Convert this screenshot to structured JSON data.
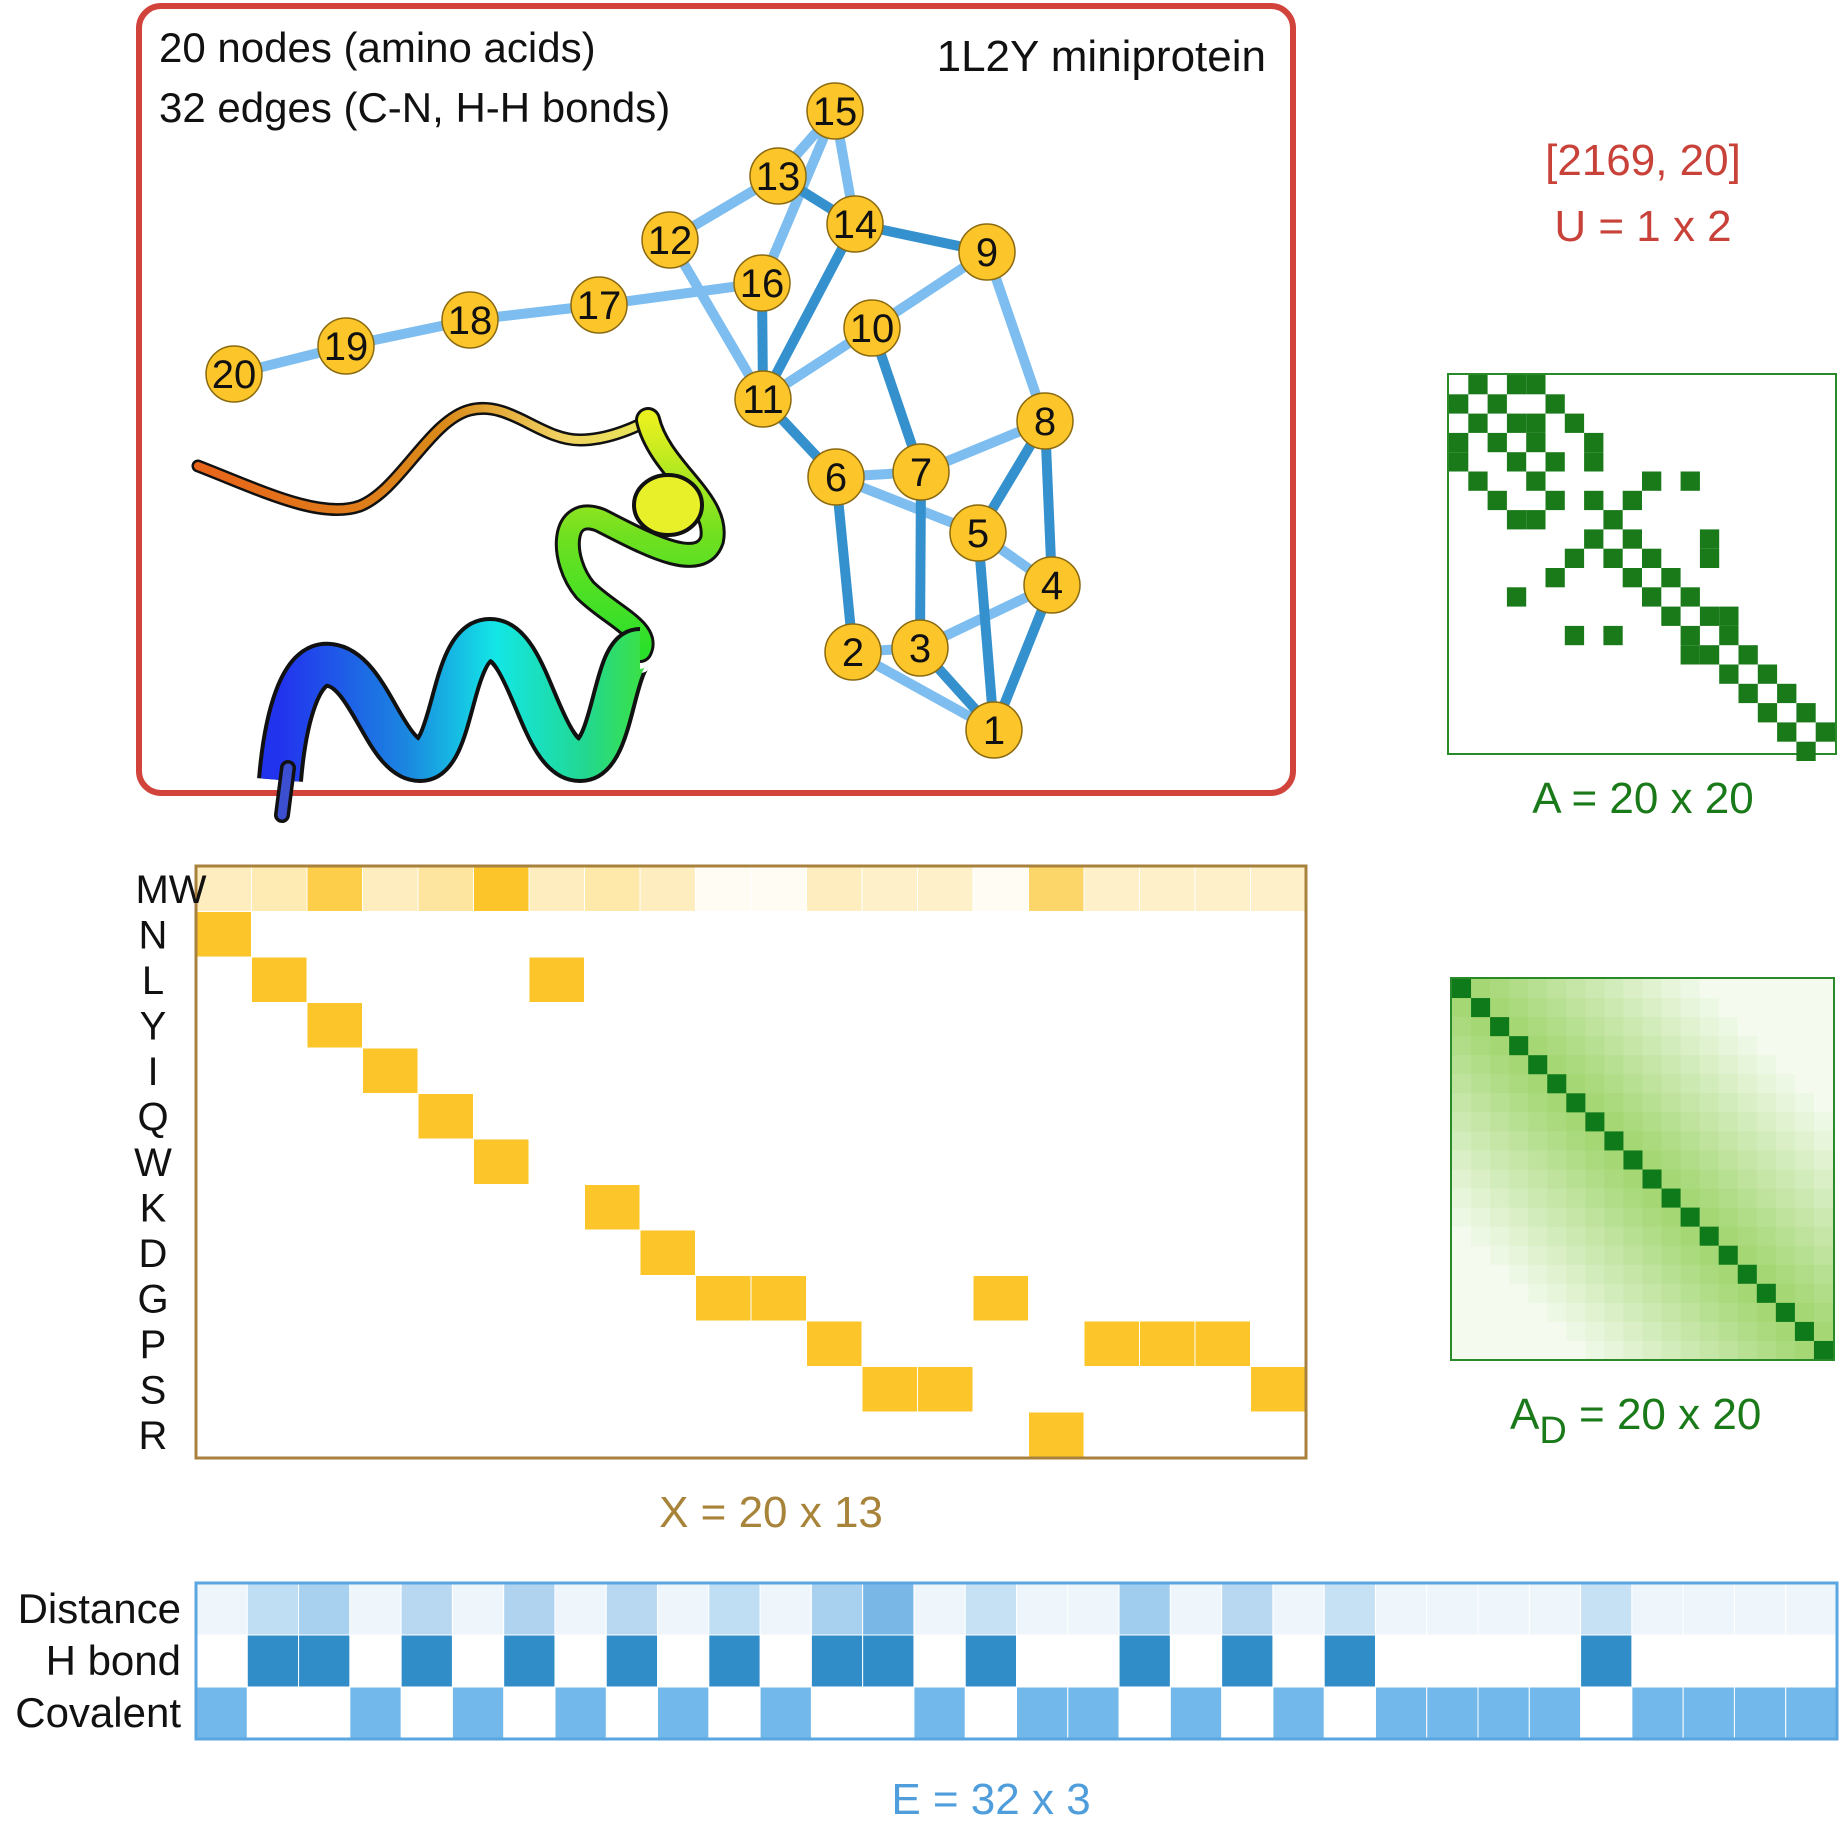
{
  "graph_panel": {
    "nodes_text": "20 nodes (amino acids)",
    "edges_text": "32 edges (C-N, H-H bonds)",
    "title": "1L2Y miniprotein",
    "node_labels": [
      "1",
      "2",
      "3",
      "4",
      "5",
      "6",
      "7",
      "8",
      "9",
      "10",
      "11",
      "12",
      "13",
      "14",
      "15",
      "16",
      "17",
      "18",
      "19",
      "20"
    ],
    "edges_light": [
      [
        1,
        2
      ],
      [
        2,
        3
      ],
      [
        3,
        4
      ],
      [
        4,
        5
      ],
      [
        5,
        6
      ],
      [
        6,
        7
      ],
      [
        7,
        8
      ],
      [
        8,
        9
      ],
      [
        9,
        10
      ],
      [
        10,
        11
      ],
      [
        11,
        12
      ],
      [
        12,
        13
      ],
      [
        13,
        15
      ],
      [
        14,
        15
      ],
      [
        15,
        16
      ],
      [
        16,
        17
      ],
      [
        17,
        18
      ],
      [
        18,
        19
      ],
      [
        19,
        20
      ]
    ],
    "edges_dark": [
      [
        1,
        4
      ],
      [
        1,
        5
      ],
      [
        1,
        3
      ],
      [
        2,
        6
      ],
      [
        3,
        7
      ],
      [
        4,
        8
      ],
      [
        5,
        8
      ],
      [
        6,
        11
      ],
      [
        7,
        10
      ],
      [
        9,
        14
      ],
      [
        11,
        14
      ],
      [
        11,
        16
      ],
      [
        13,
        14
      ]
    ]
  },
  "u_block": {
    "shape": "[2169, 20]",
    "label": "U = 1 x 2",
    "color": "#c8423a"
  },
  "adjacency": {
    "label": "A = 20 x 20",
    "color": "#1a7a1a",
    "cells": [
      [
        0,
        1
      ],
      [
        0,
        3
      ],
      [
        0,
        4
      ],
      [
        1,
        0
      ],
      [
        1,
        2
      ],
      [
        1,
        5
      ],
      [
        2,
        1
      ],
      [
        2,
        3
      ],
      [
        2,
        6
      ],
      [
        3,
        0
      ],
      [
        3,
        2
      ],
      [
        3,
        4
      ],
      [
        3,
        7
      ],
      [
        4,
        0
      ],
      [
        4,
        3
      ],
      [
        4,
        5
      ],
      [
        4,
        7
      ],
      [
        5,
        1
      ],
      [
        5,
        4
      ],
      [
        5,
        10
      ],
      [
        5,
        12
      ],
      [
        6,
        2
      ],
      [
        6,
        7
      ],
      [
        6,
        9
      ],
      [
        7,
        3
      ],
      [
        7,
        4
      ],
      [
        7,
        8
      ],
      [
        8,
        7
      ],
      [
        8,
        9
      ],
      [
        8,
        13
      ],
      [
        9,
        6
      ],
      [
        9,
        8
      ],
      [
        9,
        10
      ],
      [
        9,
        13
      ],
      [
        10,
        5
      ],
      [
        10,
        9
      ],
      [
        10,
        11
      ],
      [
        11,
        10
      ],
      [
        11,
        12
      ],
      [
        12,
        11
      ],
      [
        12,
        13
      ],
      [
        12,
        14
      ],
      [
        13,
        8
      ],
      [
        13,
        12
      ],
      [
        13,
        14
      ],
      [
        14,
        12
      ],
      [
        14,
        13
      ],
      [
        14,
        15
      ],
      [
        15,
        14
      ],
      [
        15,
        16
      ],
      [
        16,
        15
      ],
      [
        16,
        17
      ],
      [
        17,
        16
      ],
      [
        17,
        18
      ],
      [
        18,
        17
      ],
      [
        18,
        19
      ],
      [
        19,
        18
      ],
      [
        2,
        4
      ],
      [
        6,
        5
      ],
      [
        11,
        3
      ],
      [
        13,
        6
      ]
    ]
  },
  "distance_matrix": {
    "label_main": "A",
    "label_sub": "D",
    "label_rest": " = 20 x 20",
    "color": "#1a7a1a"
  },
  "feature_matrix": {
    "label": "X = 20 x 13",
    "label_color": "#a8833a",
    "border_color": "#a8823c",
    "fill_color": "#fcc52a",
    "row_labels": [
      "MW",
      "N",
      "L",
      "Y",
      "I",
      "Q",
      "W",
      "K",
      "D",
      "G",
      "P",
      "S",
      "R"
    ],
    "mw_intensity": [
      0.3,
      0.35,
      0.85,
      0.3,
      0.45,
      1.0,
      0.3,
      0.4,
      0.3,
      0.05,
      0.05,
      0.3,
      0.25,
      0.25,
      0.05,
      0.7,
      0.25,
      0.25,
      0.25,
      0.25
    ],
    "onehot_row_index": [
      1,
      2,
      3,
      4,
      5,
      6,
      2,
      7,
      8,
      9,
      9,
      10,
      11,
      11,
      9,
      12,
      10,
      10,
      10,
      11
    ]
  },
  "edge_matrix": {
    "label": "E = 32 x 3",
    "label_color": "#4f9edb",
    "border_color": "#5aa6e0",
    "row_labels": [
      "Distance",
      "H bond",
      "Covalent"
    ],
    "distance_intensity": [
      0.05,
      0.35,
      0.5,
      0.05,
      0.4,
      0.05,
      0.45,
      0.05,
      0.4,
      0.05,
      0.35,
      0.05,
      0.5,
      0.8,
      0.05,
      0.3,
      0.05,
      0.05,
      0.55,
      0.05,
      0.4,
      0.05,
      0.3,
      0.05,
      0.05,
      0.05,
      0.05,
      0.3,
      0.05,
      0.05,
      0.05,
      0.05
    ],
    "hbond": [
      0,
      1,
      1,
      0,
      1,
      0,
      1,
      0,
      1,
      0,
      1,
      0,
      1,
      1,
      0,
      1,
      0,
      0,
      1,
      0,
      1,
      0,
      1,
      0,
      0,
      0,
      0,
      1,
      0,
      0,
      0,
      0
    ],
    "covalent": [
      1,
      0,
      0,
      1,
      0,
      1,
      0,
      1,
      0,
      1,
      0,
      1,
      0,
      0,
      1,
      0,
      1,
      1,
      0,
      1,
      0,
      1,
      0,
      1,
      1,
      1,
      1,
      0,
      1,
      1,
      1,
      1
    ]
  }
}
